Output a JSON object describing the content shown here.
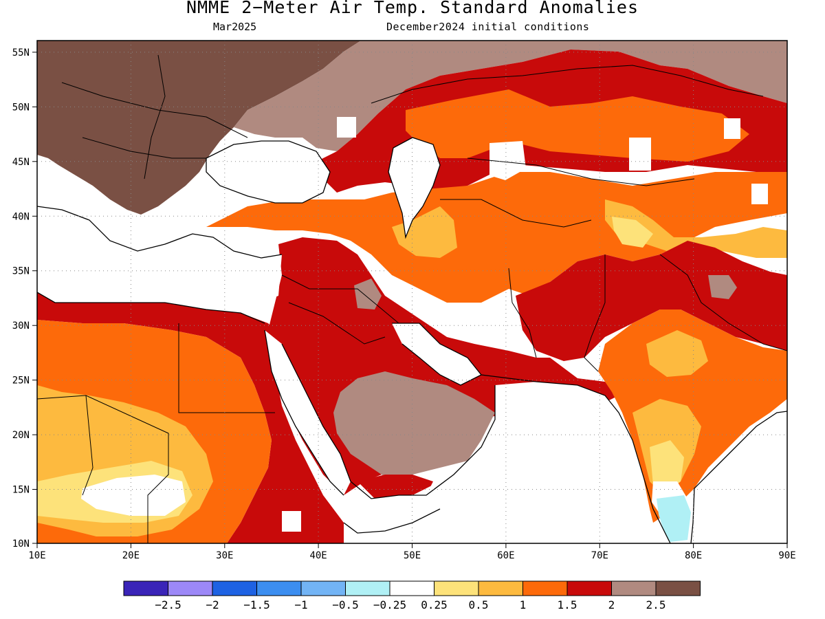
{
  "title": "NMME 2−Meter Air Temp. Standard Anomalies",
  "subtitle_left": "Mar2025",
  "subtitle_right": "December2024 initial conditions",
  "map": {
    "lon_range": [
      10,
      90
    ],
    "lat_range": [
      10,
      56
    ],
    "x_ticks": [
      "10E",
      "20E",
      "30E",
      "40E",
      "50E",
      "60E",
      "70E",
      "80E",
      "90E"
    ],
    "y_ticks": [
      "55N",
      "50N",
      "45N",
      "40N",
      "35N",
      "30N",
      "25N",
      "20N",
      "15N",
      "10N"
    ],
    "grid": "dotted"
  },
  "colorbar": {
    "colors": [
      "#3a24b8",
      "#9c88f7",
      "#1e62e3",
      "#3c8ef0",
      "#72b4f5",
      "#b0f0f5",
      "#ffffff",
      "#fde27a",
      "#fdba3f",
      "#fd6a0a",
      "#c80a0a",
      "#b08a80",
      "#7a5044"
    ],
    "labels": [
      "−2.5",
      "−2",
      "−1.5",
      "−1",
      "−0.5",
      "−0.25",
      "0.25",
      "0.5",
      "1",
      "1.5",
      "2",
      "2.5"
    ]
  },
  "palette": {
    "dark_brown": "#7a5044",
    "light_brown": "#b08a80",
    "dark_red": "#c80a0a",
    "orange": "#fd6a0a",
    "light_orange": "#fdba3f",
    "yellow": "#fde27a",
    "light_cyan": "#b0f0f5",
    "light_blue": "#72b4f5"
  }
}
